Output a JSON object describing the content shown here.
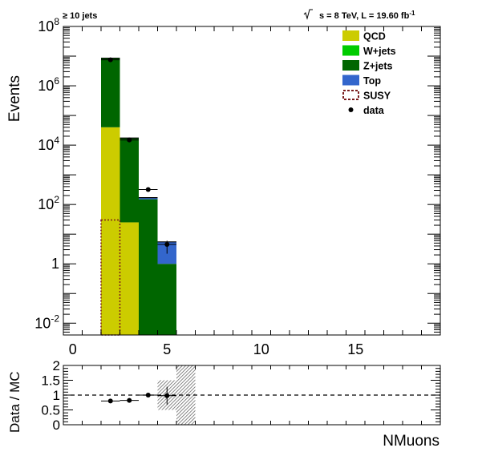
{
  "header": {
    "selection": "≥ 10 jets",
    "sqrt_s": "s",
    "energy_lumi": " = 8 TeV, L = 19.60 fb",
    "lumi_exp": "-1"
  },
  "chart_data": [
    {
      "type": "bar",
      "stacked": true,
      "yscale": "log",
      "ylabel": "Events",
      "xlabel": "",
      "xlim": [
        -0.5,
        19.5
      ],
      "ylim": [
        0.004,
        100000000
      ],
      "bin_width": 1,
      "x_tick_labels": [
        "0",
        "5",
        "10",
        "15"
      ],
      "x_tick_values": [
        0,
        5,
        10,
        15
      ],
      "y_tick_labels": [
        {
          "base": "10",
          "exp": "-2",
          "value": 0.01
        },
        {
          "base": "1",
          "exp": "",
          "value": 1
        },
        {
          "base": "10",
          "exp": "2",
          "value": 100
        },
        {
          "base": "10",
          "exp": "4",
          "value": 10000
        },
        {
          "base": "10",
          "exp": "6",
          "value": 1000000
        },
        {
          "base": "10",
          "exp": "8",
          "value": 100000000
        }
      ],
      "legend_position": "top-right",
      "legend": [
        {
          "name": "QCD",
          "color": "#cccc00",
          "style": "fill"
        },
        {
          "name": "W+jets",
          "color": "#00cc00",
          "style": "fill"
        },
        {
          "name": "Z+jets",
          "color": "#006600",
          "style": "fill"
        },
        {
          "name": "Top",
          "color": "#3366cc",
          "style": "fill"
        },
        {
          "name": "SUSY",
          "color": "#7a1c1c",
          "style": "dashed-outline"
        },
        {
          "name": "data",
          "color": "#000000",
          "style": "marker"
        }
      ],
      "bins": [
        2,
        3,
        4,
        5
      ],
      "series": [
        {
          "name": "QCD",
          "color": "#cccc00",
          "values": [
            40000,
            25,
            0,
            0
          ]
        },
        {
          "name": "W+jets",
          "color": "#00cc00",
          "values": [
            0,
            0,
            0,
            0
          ]
        },
        {
          "name": "Z+jets",
          "color": "#006600",
          "values": [
            8500000,
            17000,
            150,
            1
          ]
        },
        {
          "name": "Top",
          "color": "#3366cc",
          "values": [
            0,
            300,
            20,
            4.5
          ]
        },
        {
          "name": "SUSY",
          "color": "#7a1c1c",
          "values": [
            30,
            0,
            0,
            0
          ]
        }
      ],
      "data": {
        "x": [
          2,
          3,
          4,
          5
        ],
        "y": [
          7500000,
          15000,
          320,
          4.5
        ],
        "yerr_low": [
          0,
          0,
          0,
          2.3
        ],
        "yerr_high": [
          0,
          0,
          0,
          1.5
        ]
      }
    },
    {
      "type": "scatter",
      "ylabel": "Data / MC",
      "xlabel": "NMuons",
      "xlim": [
        -0.5,
        19.5
      ],
      "ylim": [
        0,
        2
      ],
      "y_tick_labels": [
        "0",
        "0.5",
        "1",
        "1.5",
        "2"
      ],
      "y_tick_values": [
        0,
        0.5,
        1,
        1.5,
        2
      ],
      "reference_line": 1,
      "points": {
        "x": [
          2,
          3,
          4,
          5
        ],
        "y": [
          0.8,
          0.82,
          1.0,
          0.98
        ],
        "yerr": [
          0.02,
          0.02,
          0.05,
          0.3
        ]
      },
      "uncertainty_bands": [
        {
          "x": 5,
          "low": 0.5,
          "high": 1.5
        },
        {
          "x": 6,
          "low": 0,
          "high": 2
        }
      ]
    }
  ]
}
